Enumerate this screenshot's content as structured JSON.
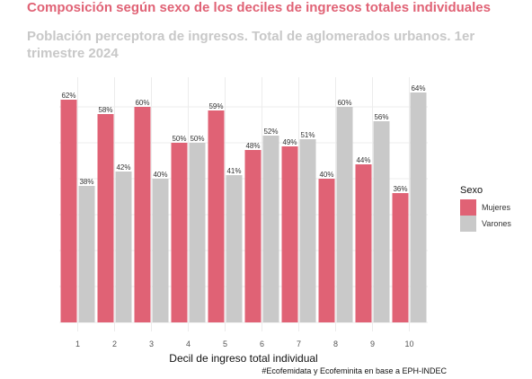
{
  "chart_data": {
    "type": "bar",
    "title": "Composición según sexo de los deciles de ingresos totales individuales",
    "subtitle": "Población perceptora de ingresos. Total de aglomerados urbanos. 1er trimestre 2024",
    "xlabel": "Decil de ingreso total individual",
    "ylabel": "",
    "categories": [
      "1",
      "2",
      "3",
      "4",
      "5",
      "6",
      "7",
      "8",
      "9",
      "10"
    ],
    "series": [
      {
        "name": "Mujeres",
        "color": "#e06275",
        "values": [
          62,
          58,
          60,
          50,
          59,
          48,
          49,
          40,
          44,
          36
        ],
        "labels": [
          "62%",
          "58%",
          "60%",
          "50%",
          "59%",
          "48%",
          "49%",
          "40%",
          "44%",
          "36%"
        ]
      },
      {
        "name": "Varones",
        "color": "#c9c9c9",
        "values": [
          38,
          42,
          40,
          50,
          41,
          52,
          51,
          60,
          56,
          64
        ],
        "labels": [
          "38%",
          "42%",
          "40%",
          "50%",
          "41%",
          "52%",
          "51%",
          "60%",
          "56%",
          "64%"
        ]
      }
    ],
    "ylim": [
      0,
      64
    ],
    "grid": true,
    "legend": {
      "title": "Sexo",
      "position": "right"
    },
    "caption": "#Ecofemidata y Ecofeminita en base a EPH-INDEC"
  }
}
